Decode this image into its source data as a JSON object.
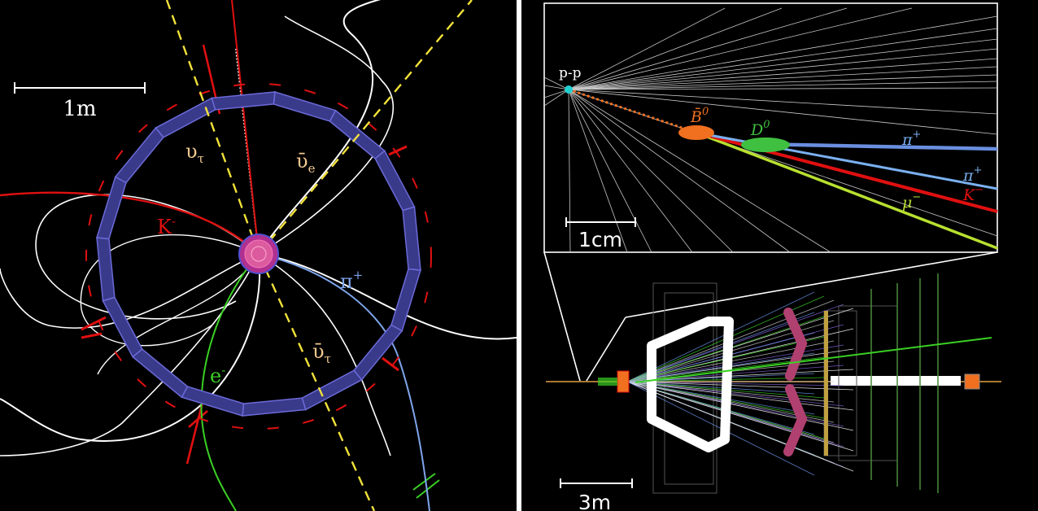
{
  "left": {
    "scale_label": "1m",
    "labels": {
      "kaon": "K",
      "kaon_sup": "-",
      "pion": "π",
      "pion_sup": "+",
      "electron": "e",
      "electron_sup": "-",
      "nu_tau_top": "υ",
      "nu_tau_top_sub": "τ",
      "nu_e_bar": "ῡ",
      "nu_e_bar_sub": "e",
      "nu_tau_bar": "ῡ",
      "nu_tau_bar_sub": "τ"
    },
    "colors": {
      "kaon": "#e01010",
      "pion": "#7ea4ea",
      "electron": "#3ad024",
      "neutrino": "#f2e23a",
      "neutrino_label": "#f0c890",
      "calorimeter": "#3a3a8a",
      "calorimeter_edge": "#6a6ad8"
    }
  },
  "right": {
    "inset": {
      "pp_label": "p-p",
      "b0_label": "B̄",
      "b0_sup": "0",
      "d0_label": "D",
      "d0_sup": "0",
      "pi_plus_1": "π",
      "pi_plus_1_sup": "+",
      "pi_plus_2": "π",
      "pi_plus_2_sup": "+",
      "kaon": "K",
      "kaon_sup": "−",
      "muon": "μ",
      "muon_sup": "−",
      "scale_label": "1cm"
    },
    "detector": {
      "scale_label": "3m"
    },
    "colors": {
      "b0": "#f07020",
      "d0": "#40c040",
      "pi": "#7ab0f0",
      "pi_line": "#6a8fe0",
      "kaon": "#e01010",
      "muon": "#b8e030",
      "pp_vertex": "#20d0d0"
    }
  }
}
